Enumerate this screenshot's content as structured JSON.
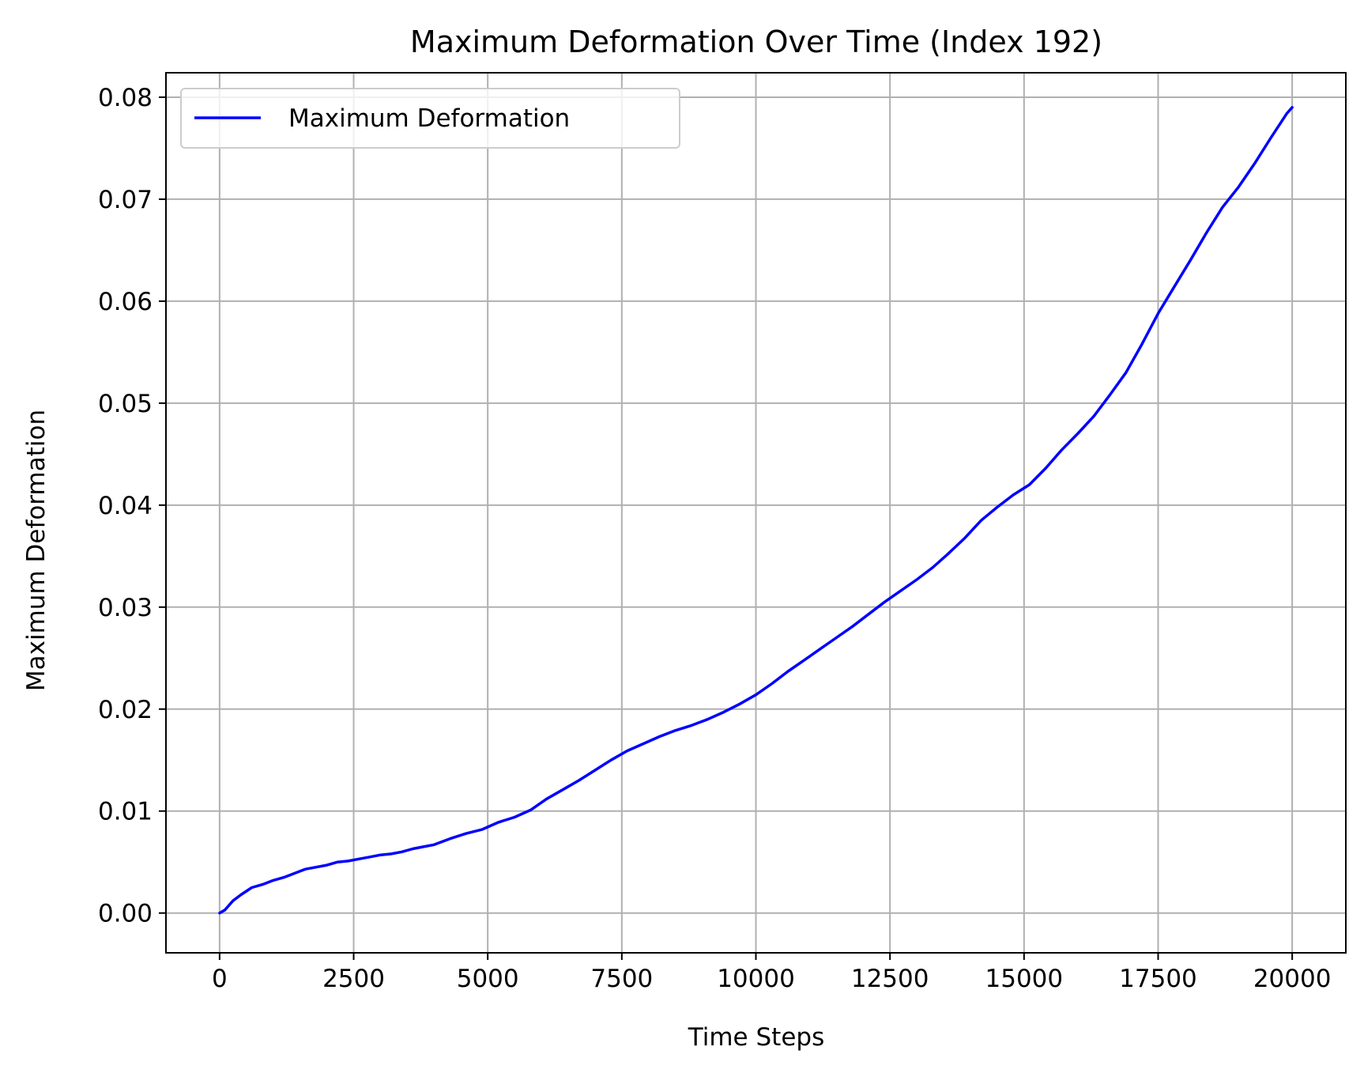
{
  "chart_data": {
    "type": "line",
    "title": "Maximum Deformation Over Time (Index 192)",
    "xlabel": "Time Steps",
    "ylabel": "Maximum Deformation",
    "xlim": [
      -1000,
      21000
    ],
    "ylim": [
      -0.0039,
      0.0824
    ],
    "xticks": [
      0,
      2500,
      5000,
      7500,
      10000,
      12500,
      15000,
      17500,
      20000
    ],
    "xtick_labels": [
      "0",
      "2500",
      "5000",
      "7500",
      "10000",
      "12500",
      "15000",
      "17500",
      "20000"
    ],
    "yticks": [
      0.0,
      0.01,
      0.02,
      0.03,
      0.04,
      0.05,
      0.06,
      0.07,
      0.08
    ],
    "ytick_labels": [
      "0.00",
      "0.01",
      "0.02",
      "0.03",
      "0.04",
      "0.05",
      "0.06",
      "0.07",
      "0.08"
    ],
    "grid": true,
    "legend_position": "upper-left",
    "series": [
      {
        "name": "Maximum Deformation",
        "color": "#0000ff",
        "x": [
          0,
          100,
          250,
          400,
          600,
          800,
          1000,
          1200,
          1400,
          1600,
          1800,
          2000,
          2200,
          2400,
          2600,
          2800,
          3000,
          3200,
          3400,
          3600,
          3800,
          4000,
          4300,
          4600,
          4900,
          5200,
          5500,
          5800,
          6100,
          6400,
          6700,
          7000,
          7300,
          7600,
          7900,
          8200,
          8500,
          8800,
          9100,
          9400,
          9700,
          10000,
          10300,
          10600,
          10900,
          11200,
          11500,
          11800,
          12100,
          12400,
          12700,
          13000,
          13300,
          13600,
          13900,
          14200,
          14500,
          14800,
          15100,
          15400,
          15700,
          16000,
          16300,
          16600,
          16900,
          17200,
          17500,
          17800,
          18100,
          18400,
          18700,
          19000,
          19300,
          19600,
          19900,
          20000
        ],
        "y": [
          0.0,
          0.0003,
          0.0012,
          0.0018,
          0.0025,
          0.0028,
          0.0032,
          0.0035,
          0.0039,
          0.0043,
          0.0045,
          0.0047,
          0.005,
          0.0051,
          0.0053,
          0.0055,
          0.0057,
          0.0058,
          0.006,
          0.0063,
          0.0065,
          0.0067,
          0.0073,
          0.0078,
          0.0082,
          0.0089,
          0.0094,
          0.0101,
          0.0112,
          0.0121,
          0.013,
          0.014,
          0.015,
          0.0159,
          0.0166,
          0.0173,
          0.0179,
          0.0184,
          0.019,
          0.0197,
          0.0205,
          0.0214,
          0.0225,
          0.0237,
          0.0248,
          0.0259,
          0.027,
          0.0281,
          0.0293,
          0.0305,
          0.0316,
          0.0327,
          0.0339,
          0.0353,
          0.0368,
          0.0385,
          0.0398,
          0.041,
          0.042,
          0.0436,
          0.0454,
          0.047,
          0.0487,
          0.0508,
          0.053,
          0.0558,
          0.0588,
          0.0614,
          0.064,
          0.0667,
          0.0692,
          0.0712,
          0.0735,
          0.076,
          0.0784,
          0.079
        ]
      }
    ]
  }
}
